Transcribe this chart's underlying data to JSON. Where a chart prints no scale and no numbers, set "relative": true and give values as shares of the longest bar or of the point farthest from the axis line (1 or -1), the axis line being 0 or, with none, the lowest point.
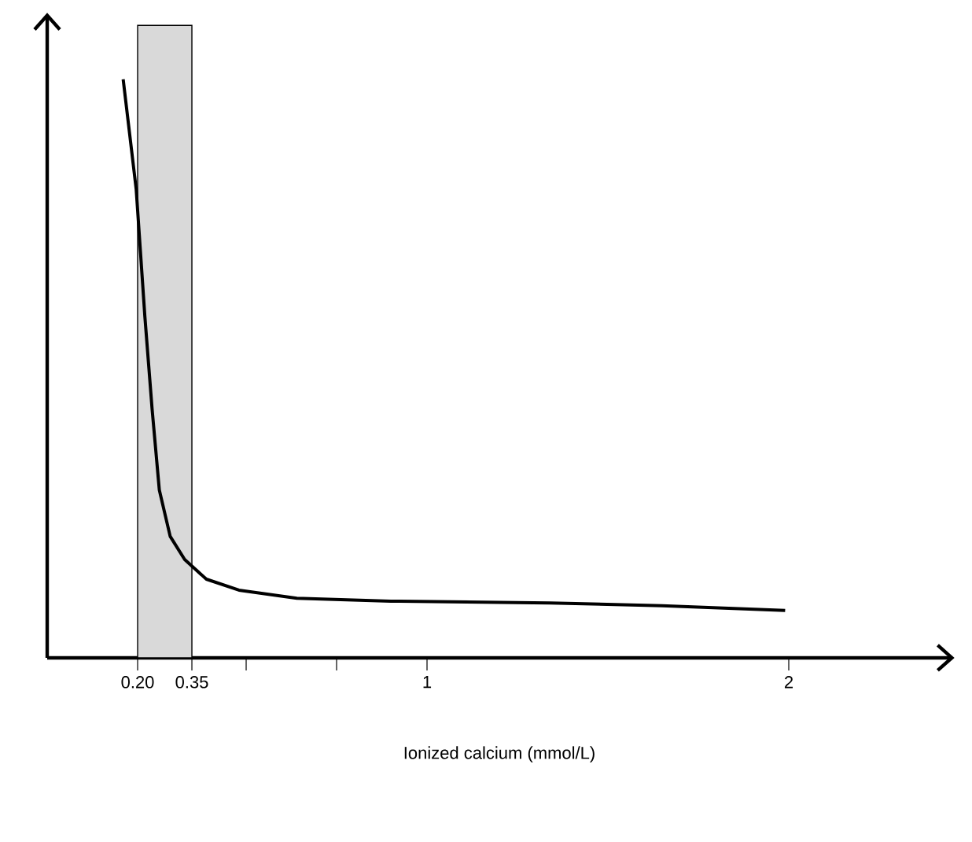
{
  "chart_data": {
    "type": "line",
    "xlabel": "Ionized calcium (mmol/L)",
    "relative": true,
    "x": [
      0.16,
      0.196,
      0.22,
      0.24,
      0.26,
      0.29,
      0.33,
      0.39,
      0.48,
      0.64,
      0.9,
      1.34,
      1.65,
      1.99
    ],
    "series": [
      {
        "color": "#000000",
        "values": [
          1,
          0.81,
          0.59,
          0.43,
          0.29,
          0.21,
          0.17,
          0.136,
          0.117,
          0.103,
          0.098,
          0.095,
          0.09,
          0.082
        ]
      }
    ],
    "xlim": [
      -0.05,
      2.45
    ],
    "xticks": [
      {
        "value": 0.2,
        "label": "0.20"
      },
      {
        "value": 0.35,
        "label": "0.35"
      },
      {
        "value": 0.5,
        "label": null
      },
      {
        "value": 0.75,
        "label": null
      },
      1,
      2
    ],
    "bands": [
      {
        "axis": "x",
        "from": 0.2,
        "to": 0.35,
        "color": "#d9d9d9"
      }
    ],
    "grid": false,
    "marker": "none",
    "line_style": "solid",
    "tick_labels": "x"
  }
}
